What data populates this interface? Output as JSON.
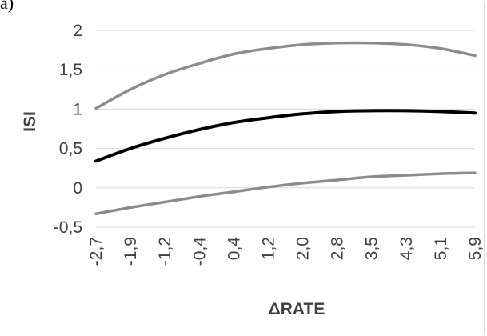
{
  "panel_label": "a)",
  "chart_data": {
    "type": "line",
    "title": "",
    "xlabel": "ΔRATE",
    "ylabel": "ISI",
    "x": [
      -2.7,
      -1.9,
      -1.2,
      -0.4,
      0.4,
      1.2,
      2.0,
      2.8,
      3.5,
      4.3,
      5.1,
      5.9
    ],
    "x_tick_labels": [
      "-2,7",
      "-1,9",
      "-1,2",
      "-0,4",
      "0,4",
      "1,2",
      "2,0",
      "2,8",
      "3,5",
      "4,3",
      "5,1",
      "5,9"
    ],
    "ylim": [
      -0.5,
      2
    ],
    "y_ticks": [
      -0.5,
      0,
      0.5,
      1,
      1.5,
      2
    ],
    "y_tick_labels": [
      "-0,5",
      "0",
      "0,5",
      "1",
      "1,5",
      "2"
    ],
    "grid": "horizontal",
    "legend": "none",
    "series": [
      {
        "color": "#8c8c8c",
        "values": [
          1.01,
          1.25,
          1.44,
          1.58,
          1.7,
          1.77,
          1.82,
          1.84,
          1.84,
          1.82,
          1.77,
          1.68
        ]
      },
      {
        "color": "#000000",
        "values": [
          0.34,
          0.5,
          0.63,
          0.74,
          0.83,
          0.89,
          0.94,
          0.97,
          0.98,
          0.98,
          0.97,
          0.95
        ]
      },
      {
        "color": "#8c8c8c",
        "values": [
          -0.33,
          -0.25,
          -0.18,
          -0.11,
          -0.05,
          0.01,
          0.06,
          0.1,
          0.14,
          0.16,
          0.18,
          0.19
        ]
      }
    ]
  }
}
